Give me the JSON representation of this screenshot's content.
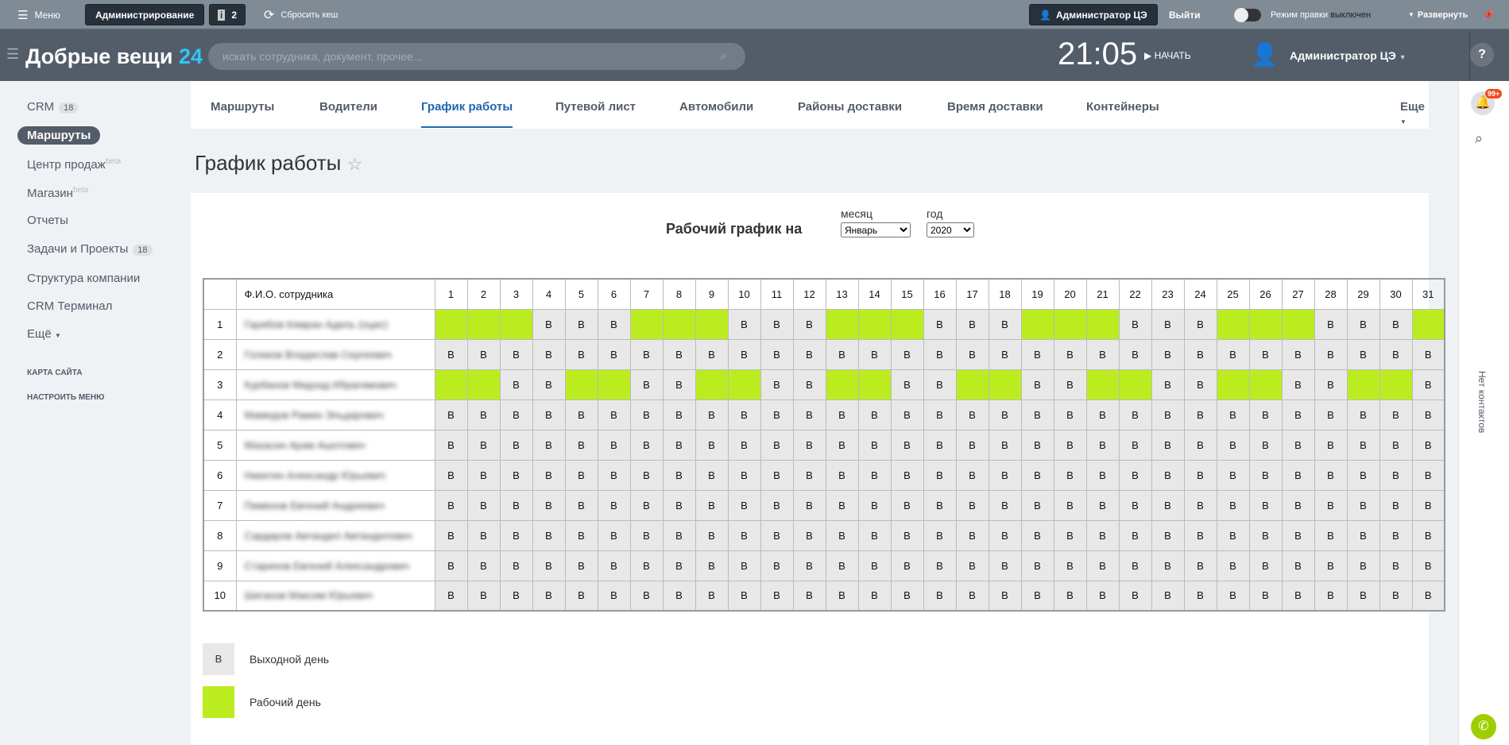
{
  "topbar": {
    "menu": "Меню",
    "admin": "Администрирование",
    "notif_count": "2",
    "reset_cache": "Сбросить кеш",
    "user": "Администратор ЦЭ",
    "logout": "Выйти",
    "edit_mode": "Режим правки",
    "edit_state": "выключен",
    "expand": "Развернуть"
  },
  "header": {
    "logo": "Добрые вещи",
    "logo_num": "24",
    "search_placeholder": "искать сотрудника, документ, прочее...",
    "time": "21:05",
    "start": "НАЧАТЬ",
    "user": "Администратор ЦЭ"
  },
  "sidebar": {
    "items": [
      {
        "label": "CRM",
        "count": "18"
      },
      {
        "label": "Маршруты"
      },
      {
        "label": "Центр продаж",
        "sup": "beta"
      },
      {
        "label": "Магазин",
        "sup": "beta"
      },
      {
        "label": "Отчеты"
      },
      {
        "label": "Задачи и Проекты",
        "count": "18"
      },
      {
        "label": "Структура компании"
      },
      {
        "label": "CRM Терминал"
      },
      {
        "label": "Ещё"
      }
    ],
    "sitemap": "КАРТА САЙТА",
    "configure": "НАСТРОИТЬ МЕНЮ"
  },
  "tabs": [
    "Маршруты",
    "Водители",
    "График работы",
    "Путевой лист",
    "Автомобили",
    "Районы доставки",
    "Время доставки",
    "Контейнеры"
  ],
  "tabs_more": "Еще",
  "page_title": "График работы",
  "schedule": {
    "heading": "Рабочий график на",
    "month_label": "месяц",
    "month": "Январь",
    "year_label": "год",
    "year": "2020",
    "name_header": "Ф.И.О. сотрудника",
    "rows": [
      {
        "n": "1",
        "name": "Гарибов Кямран Адиль (оцис)",
        "days": "WWWBBBWWWBBBWWWBBBWWWBBBWWWBBBW"
      },
      {
        "n": "2",
        "name": "Голиков Владислав Сергеевич",
        "days": "BBBBBBBBBBBBBBBBBBBBBBBBBBBBBBB"
      },
      {
        "n": "3",
        "name": "Курбанов Мидхад Ибрагимович",
        "days": "WWBBWWBBWWBBWWBBWWBBWWBBWWBBWWB"
      },
      {
        "n": "4",
        "name": "Мамедов Рамин Эльдарович",
        "days": "BBBBBBBBBBBBBBBBBBBBBBBBBBBBBBB"
      },
      {
        "n": "5",
        "name": "Махасин Арам Ашотович",
        "days": "BBBBBBBBBBBBBBBBBBBBBBBBBBBBBBB"
      },
      {
        "n": "6",
        "name": "Никитин Александр Юрьевич",
        "days": "BBBBBBBBBBBBBBBBBBBBBBBBBBBBBBB"
      },
      {
        "n": "7",
        "name": "Пименов Евгений Андреевич",
        "days": "BBBBBBBBBBBBBBBBBBBBBBBBBBBBBBB"
      },
      {
        "n": "8",
        "name": "Сардаров Автандил Автандилович",
        "days": "BBBBBBBBBBBBBBBBBBBBBBBBBBBBBBB"
      },
      {
        "n": "9",
        "name": "Старинов Евгений Александрович",
        "days": "BBBBBBBBBBBBBBBBBBBBBBBBBBBBBBB"
      },
      {
        "n": "10",
        "name": "Шиганов Максим Юрьевич",
        "days": "BBBBBBBBBBBBBBBBBBBBBBBBBBBBBBB"
      }
    ],
    "off_letter": "В"
  },
  "legend": {
    "off_letter": "В",
    "off": "Выходной день",
    "work": "Рабочий день"
  },
  "colors": {
    "work": "#bbec20",
    "off": "#e8e8e8",
    "accent": "#2067b0"
  },
  "right": {
    "no_contacts": "Нет контактов",
    "notif_badge": "99+"
  }
}
